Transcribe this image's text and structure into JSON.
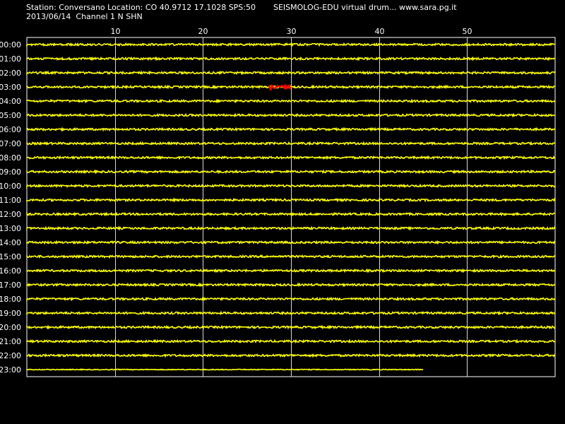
{
  "header": {
    "station_line": "Station: Conversano Location: CO 40.9712 17.1028 SPS:50",
    "app_line": "SEISMOLOG-EDU virtual drum... www.sara.pg.it",
    "date_channel_line": "2013/06/14  Channel 1 N SHN"
  },
  "colors": {
    "background": "#000000",
    "trace": "#ffff00",
    "event": "#ff0000",
    "grid": "#ffffff",
    "text": "#ffffff"
  },
  "chart_data": {
    "type": "line",
    "title": "",
    "xlabel": "",
    "ylabel": "",
    "x_ticks": [
      10,
      20,
      30,
      40,
      50
    ],
    "xlim": [
      0,
      60
    ],
    "rows": [
      "00:00",
      "01:00",
      "02:00",
      "03:00",
      "04:00",
      "05:00",
      "06:00",
      "07:00",
      "08:00",
      "09:00",
      "10:00",
      "11:00",
      "12:00",
      "13:00",
      "14:00",
      "15:00",
      "16:00",
      "17:00",
      "18:00",
      "19:00",
      "20:00",
      "21:00",
      "22:00",
      "23:00"
    ],
    "last_row_end_minute": 45,
    "events": [
      {
        "row": "03:00",
        "start_minute": 27.5,
        "end_minute": 30
      }
    ],
    "grid": true
  }
}
